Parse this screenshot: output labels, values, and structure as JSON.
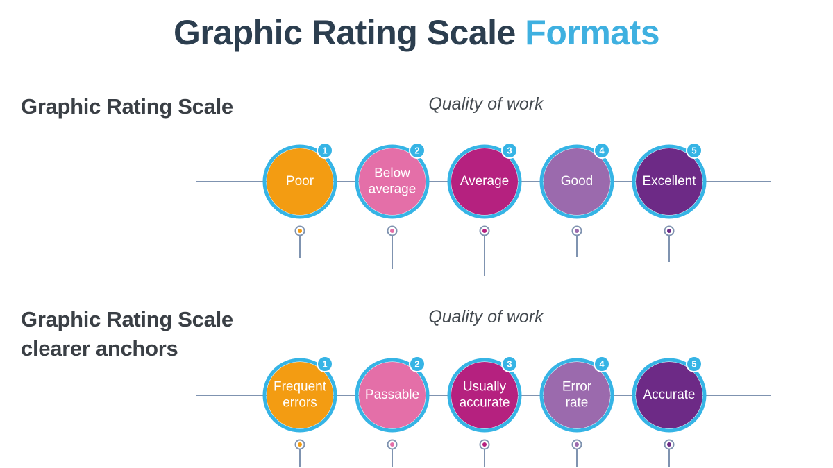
{
  "title": {
    "main": "Graphic Rating Scale",
    "accent": "Formats"
  },
  "scales": [
    {
      "label_lines": [
        "Graphic Rating Scale"
      ],
      "caption": "Quality of work",
      "items": [
        {
          "number": "1",
          "lines": [
            "Poor"
          ],
          "color": "#f39c12",
          "dot_color": "#f39c12"
        },
        {
          "number": "2",
          "lines": [
            "Below",
            "average"
          ],
          "color": "#e46fa8",
          "dot_color": "#e46fa8"
        },
        {
          "number": "3",
          "lines": [
            "Average"
          ],
          "color": "#b5217f",
          "dot_color": "#b5217f"
        },
        {
          "number": "4",
          "lines": [
            "Good"
          ],
          "color": "#9b6aad",
          "dot_color": "#9b6aad"
        },
        {
          "number": "5",
          "lines": [
            "Excellent"
          ],
          "color": "#6d2a86",
          "dot_color": "#6d2a86"
        }
      ]
    },
    {
      "label_lines": [
        "Graphic Rating Scale",
        "clearer anchors"
      ],
      "caption": "Quality of work",
      "items": [
        {
          "number": "1",
          "lines": [
            "Frequent",
            "errors"
          ],
          "color": "#f39c12",
          "dot_color": "#f39c12"
        },
        {
          "number": "2",
          "lines": [
            "Passable"
          ],
          "color": "#e46fa8",
          "dot_color": "#e46fa8"
        },
        {
          "number": "3",
          "lines": [
            "Usually",
            "accurate"
          ],
          "color": "#b5217f",
          "dot_color": "#b5217f"
        },
        {
          "number": "4",
          "lines": [
            "Error",
            "rate"
          ],
          "color": "#9b6aad",
          "dot_color": "#9b6aad"
        },
        {
          "number": "5",
          "lines": [
            "Accurate"
          ],
          "color": "#6d2a86",
          "dot_color": "#6d2a86"
        }
      ]
    }
  ]
}
